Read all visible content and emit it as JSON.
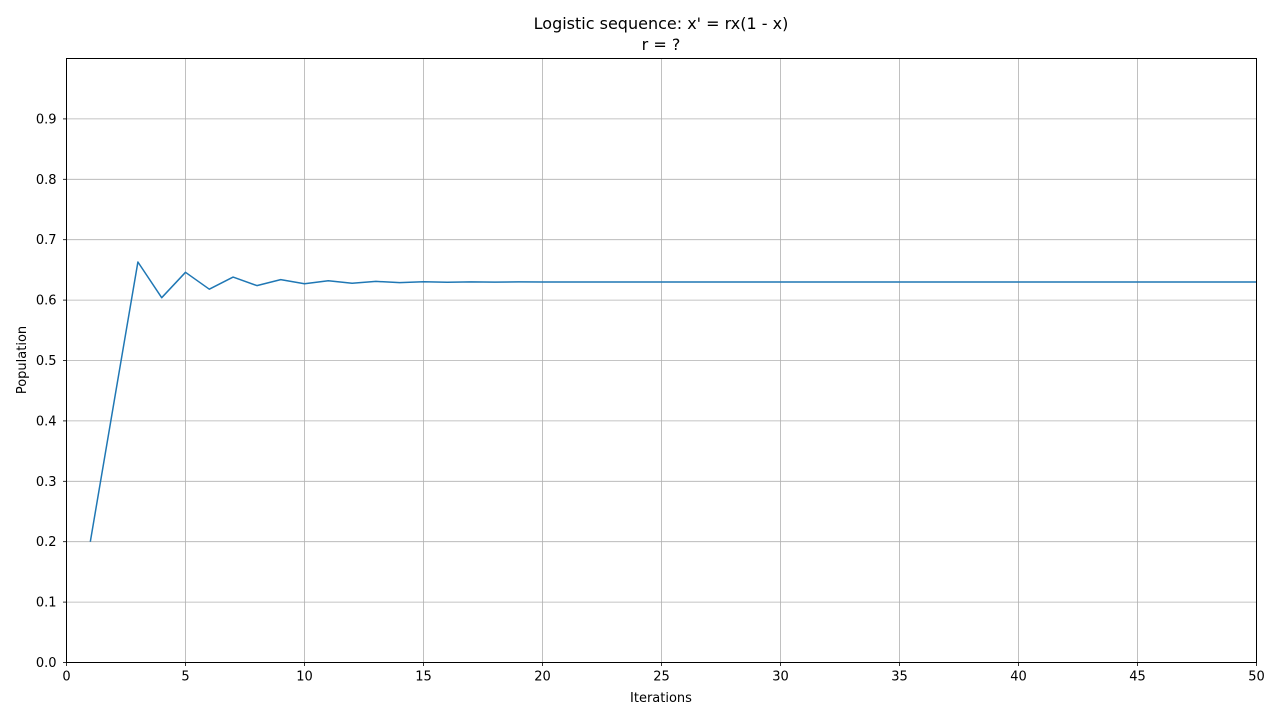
{
  "chart_data": {
    "type": "line",
    "title": "Logistic sequence: x' = rx(1 - x)",
    "subtitle": "r = ?",
    "xlabel": "Iterations",
    "ylabel": "Population",
    "xlim": [
      0,
      50
    ],
    "ylim": [
      0,
      1
    ],
    "xticks": [
      "0",
      "5",
      "10",
      "15",
      "20",
      "25",
      "30",
      "35",
      "40",
      "45",
      "50"
    ],
    "yticks": [
      "0.0",
      "0.1",
      "0.2",
      "0.3",
      "0.4",
      "0.5",
      "0.6",
      "0.7",
      "0.8",
      "0.9"
    ],
    "grid": true,
    "series": [
      {
        "color": "#1f77b4",
        "x": [
          1,
          2,
          3,
          4,
          5,
          6,
          7,
          8,
          9,
          10,
          11,
          12,
          13,
          14,
          15,
          16,
          17,
          18,
          19,
          20,
          21,
          22,
          23,
          24,
          25,
          26,
          27,
          28,
          29,
          30,
          31,
          32,
          33,
          34,
          35,
          36,
          37,
          38,
          39,
          40,
          41,
          42,
          43,
          44,
          45,
          46,
          47,
          48,
          49,
          50
        ],
        "y": [
          0.2,
          0.432,
          0.663,
          0.604,
          0.646,
          0.618,
          0.638,
          0.624,
          0.634,
          0.627,
          0.632,
          0.628,
          0.631,
          0.629,
          0.6305,
          0.6295,
          0.6302,
          0.6298,
          0.6301,
          0.6299,
          0.63,
          0.63,
          0.63,
          0.63,
          0.63,
          0.63,
          0.63,
          0.63,
          0.63,
          0.63,
          0.63,
          0.63,
          0.63,
          0.63,
          0.63,
          0.63,
          0.63,
          0.63,
          0.63,
          0.63,
          0.63,
          0.63,
          0.63,
          0.63,
          0.63,
          0.63,
          0.63,
          0.63,
          0.63,
          0.63
        ]
      }
    ]
  }
}
